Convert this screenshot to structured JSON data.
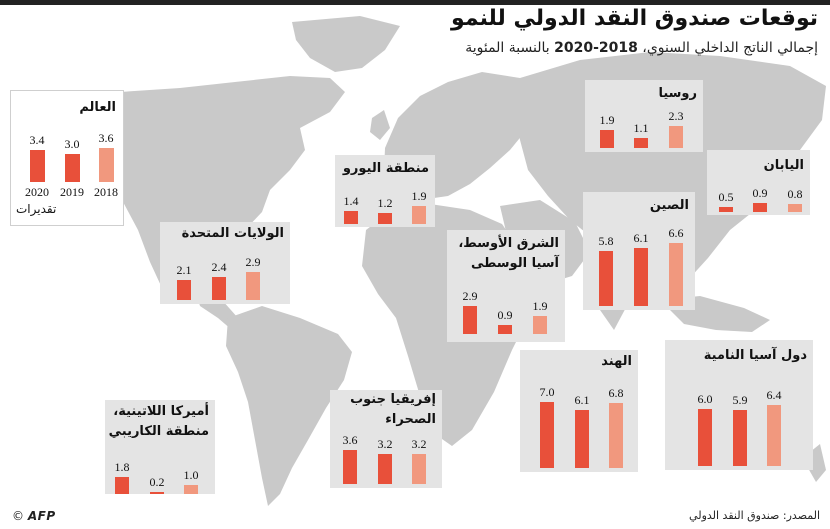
{
  "title": "توقعات صندوق النقد الدولي للنمو",
  "subtitle_prefix": "إجمالي الناتج الداخلي السنوي، ",
  "subtitle_years": "2018-2020",
  "subtitle_suffix": " بالنسبة المئوية",
  "source": "المصدر: صندوق النقد الدولي",
  "credit_symbol": "©",
  "credit_brand": "AFP",
  "colors": {
    "dark_bar": "#e8503a",
    "light_bar": "#f1987e",
    "map": "#c9c9c9",
    "panel_bg": "#e4e4e4"
  },
  "chart_data": [
    {
      "type": "bar",
      "region": "العالم",
      "categories": [
        "2020",
        "2019",
        "2018"
      ],
      "values": [
        3.4,
        3.0,
        3.6
      ],
      "estimate_label": "تقديرات"
    },
    {
      "type": "bar",
      "region": "روسيا",
      "categories": [
        "2020",
        "2019",
        "2018"
      ],
      "values": [
        1.9,
        1.1,
        2.3
      ]
    },
    {
      "type": "bar",
      "region": "اليابان",
      "categories": [
        "2020",
        "2019",
        "2018"
      ],
      "values": [
        0.5,
        0.9,
        0.8
      ]
    },
    {
      "type": "bar",
      "region": "منطقة اليورو",
      "categories": [
        "2020",
        "2019",
        "2018"
      ],
      "values": [
        1.4,
        1.2,
        1.9
      ]
    },
    {
      "type": "bar",
      "region": "الولايات المتحدة",
      "categories": [
        "2020",
        "2019",
        "2018"
      ],
      "values": [
        2.1,
        2.4,
        2.9
      ]
    },
    {
      "type": "bar",
      "region": "الصين",
      "categories": [
        "2020",
        "2019",
        "2018"
      ],
      "values": [
        5.8,
        6.1,
        6.6
      ]
    },
    {
      "type": "bar",
      "region": "الشرق الأوسط، آسيا الوسطى",
      "categories": [
        "2020",
        "2019",
        "2018"
      ],
      "values": [
        2.9,
        0.9,
        1.9
      ]
    },
    {
      "type": "bar",
      "region": "دول آسيا النامية",
      "categories": [
        "2020",
        "2019",
        "2018"
      ],
      "values": [
        6.0,
        5.9,
        6.4
      ]
    },
    {
      "type": "bar",
      "region": "الهند",
      "categories": [
        "2020",
        "2019",
        "2018"
      ],
      "values": [
        7.0,
        6.1,
        6.8
      ]
    },
    {
      "type": "bar",
      "region": "إفريقيا جنوب الصحراء",
      "categories": [
        "2020",
        "2019",
        "2018"
      ],
      "values": [
        3.6,
        3.2,
        3.2
      ]
    },
    {
      "type": "bar",
      "region": "أميركا اللاتينية، منطقة الكاريبي",
      "categories": [
        "2020",
        "2019",
        "2018"
      ],
      "values": [
        1.8,
        0.2,
        1.0
      ]
    }
  ]
}
